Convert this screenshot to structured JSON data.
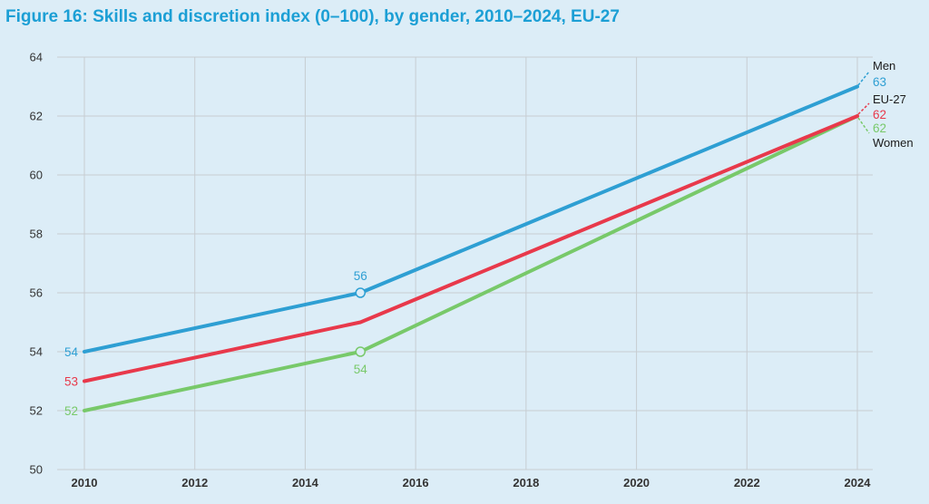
{
  "title": "Figure  16: Skills and discretion index (0–100), by gender, 2010–2024, EU-27",
  "chart_data": {
    "type": "line",
    "title": "Figure  16: Skills and discretion index (0–100), by gender, 2010–2024, EU-27",
    "xlabel": "",
    "ylabel": "",
    "x_ticks": [
      "2010",
      "2012",
      "2014",
      "2016",
      "2018",
      "2020",
      "2022",
      "2024"
    ],
    "xlim": [
      2010,
      2024
    ],
    "ylim": [
      50,
      64
    ],
    "y_ticks": [
      "50",
      "52",
      "54",
      "56",
      "58",
      "60",
      "62",
      "64"
    ],
    "grid": true,
    "series": [
      {
        "name": "Men",
        "color": "#2e9fd3",
        "x": [
          2010,
          2015,
          2024
        ],
        "values": [
          54,
          56,
          63
        ],
        "start_label": "54",
        "mid_label": "56",
        "end_label": "63"
      },
      {
        "name": "EU-27",
        "color": "#e8394b",
        "x": [
          2010,
          2015,
          2024
        ],
        "values": [
          53,
          55,
          62
        ],
        "start_label": "53",
        "end_label": "62"
      },
      {
        "name": "Women",
        "color": "#78c96a",
        "x": [
          2010,
          2015,
          2024
        ],
        "values": [
          52,
          54,
          62
        ],
        "start_label": "52",
        "mid_label": "54",
        "end_label": "62"
      }
    ]
  }
}
